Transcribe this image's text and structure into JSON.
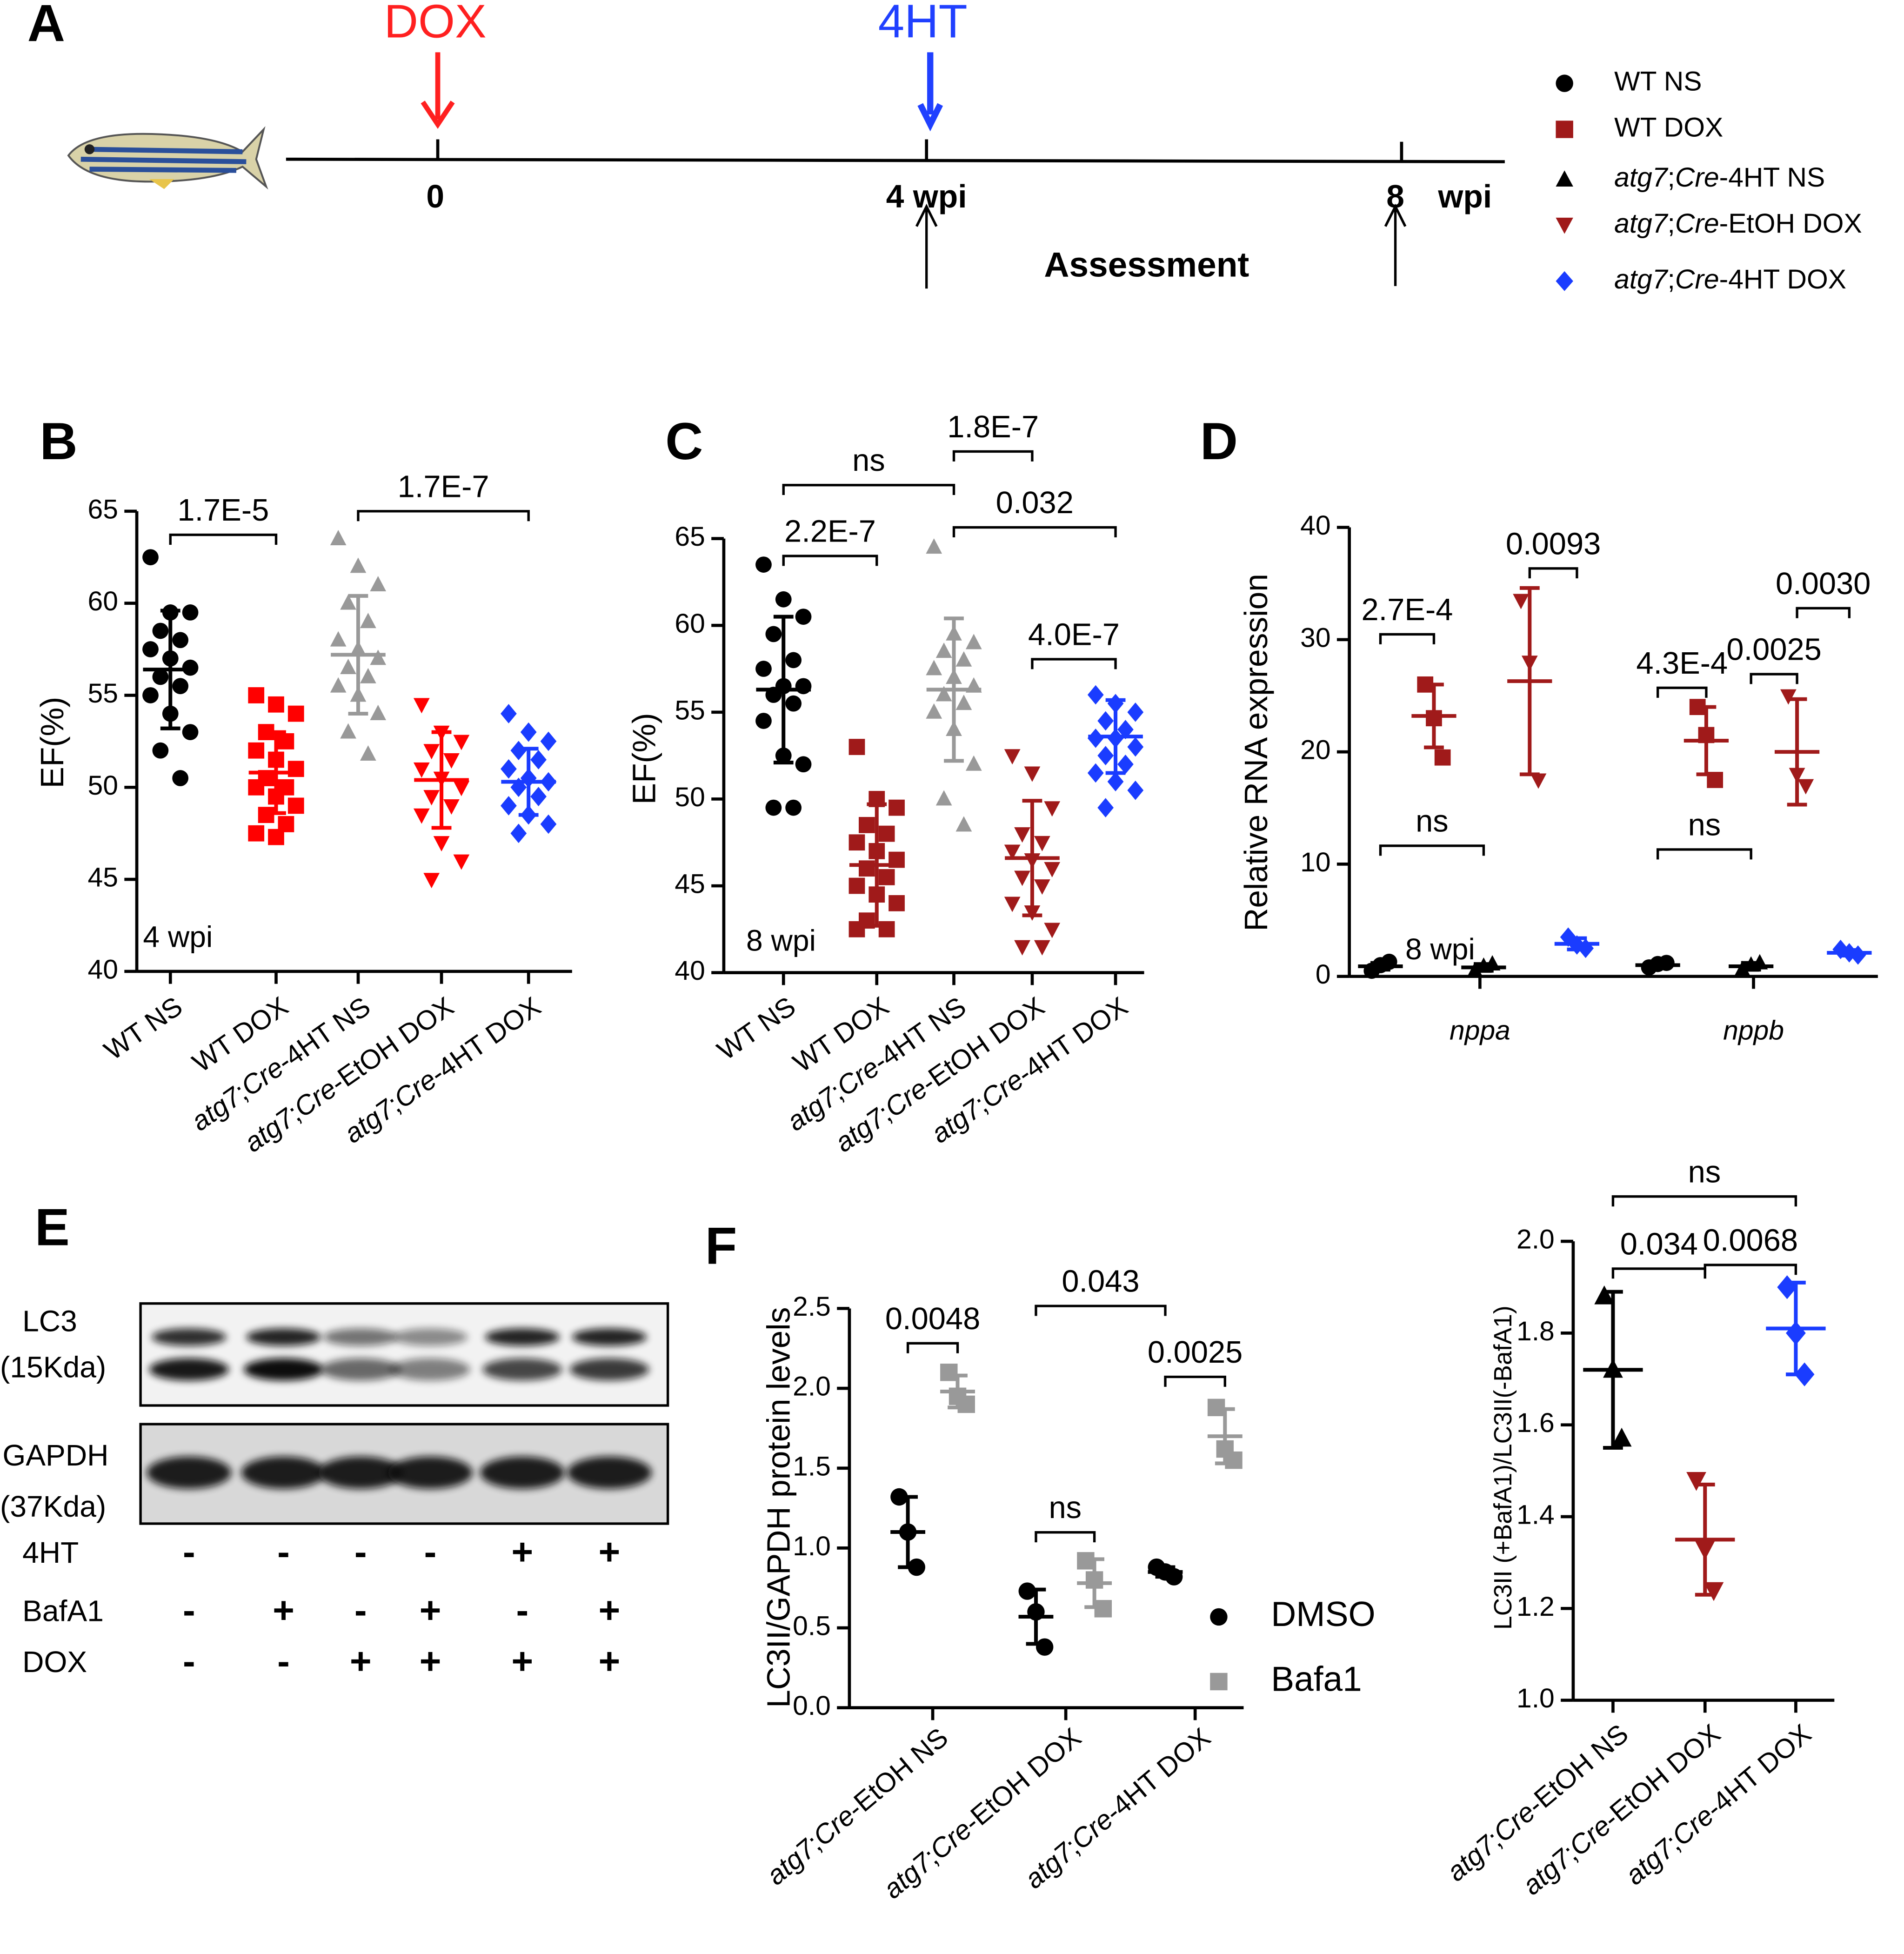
{
  "panels": [
    "A",
    "B",
    "C",
    "D",
    "E",
    "F"
  ],
  "timeline": {
    "start": "DOX",
    "intervention": "4HT",
    "ticks": [
      "0",
      "4 wpi",
      "8"
    ],
    "unit": "wpi",
    "assessment": "Assessment",
    "legend": [
      "WT NS",
      "WT DOX",
      "atg7;Cre-4HT NS",
      "atg7;Cre-EtOH DOX",
      "atg7;Cre-4HT DOX"
    ]
  },
  "blot": {
    "bands": [
      {
        "name": "LC3",
        "size": "(15Kda)"
      },
      {
        "name": "GAPDH",
        "size": "(37Kda)"
      }
    ],
    "conditions": [
      {
        "name": "4HT",
        "signs": [
          "-",
          "-",
          "-",
          "-",
          "+",
          "+"
        ]
      },
      {
        "name": "BafA1",
        "signs": [
          "-",
          "+",
          "-",
          "+",
          "-",
          "+"
        ]
      },
      {
        "name": "DOX",
        "signs": [
          "-",
          "-",
          "+",
          "+",
          "+",
          "+"
        ]
      }
    ]
  },
  "chart_data": [
    {
      "type": "dot",
      "ylabel": "EF(%)",
      "annotation": "4 wpi",
      "ylim": [
        40,
        65
      ],
      "yticks": [
        40,
        45,
        50,
        55,
        60,
        65
      ],
      "categories": [
        "WT NS",
        "WT DOX",
        "atg7;Cre-4HT NS",
        "atg7;Cre-EtOH DOX",
        "atg7;Cre-4HT DOX"
      ],
      "colors": [
        "#000000",
        "#ff0000",
        "#999999",
        "#ff0000",
        "#1a3cff"
      ],
      "markers": [
        "circle",
        "square",
        "triangle",
        "triangle-down",
        "diamond"
      ],
      "values": [
        [
          62.5,
          59.5,
          59.5,
          58.5,
          58,
          57.5,
          57,
          56.5,
          56,
          55.5,
          55,
          54,
          53,
          52,
          50.5
        ],
        [
          55,
          54.5,
          54,
          53,
          52.5,
          52,
          51.5,
          51,
          50.5,
          50,
          50,
          49.5,
          49,
          48.5,
          48,
          47.5,
          47.3
        ],
        [
          63.5,
          62,
          61,
          60,
          59,
          58,
          57.5,
          57,
          56.5,
          56,
          55.5,
          55,
          54,
          53,
          51.8
        ],
        [
          54.5,
          53,
          52.5,
          52,
          51.5,
          51,
          50.5,
          50,
          49.5,
          49,
          48.5,
          47,
          46,
          45
        ],
        [
          54,
          53,
          52.5,
          52,
          51.5,
          51,
          50.5,
          50.3,
          50,
          49.5,
          49,
          48.5,
          48,
          47.5
        ]
      ],
      "means": [
        56.4,
        50.8,
        57.2,
        50.4,
        50.3
      ],
      "sds": [
        3.2,
        2.2,
        3.2,
        2.6,
        1.8
      ],
      "comparisons": [
        {
          "between": [
            0,
            1
          ],
          "label": "1.7E-5"
        },
        {
          "between": [
            2,
            4
          ],
          "label": "1.7E-7"
        }
      ]
    },
    {
      "type": "dot",
      "ylabel": "EF(%)",
      "annotation": "8 wpi",
      "ylim": [
        40,
        65
      ],
      "yticks": [
        40,
        45,
        50,
        55,
        60,
        65
      ],
      "categories": [
        "WT NS",
        "WT DOX",
        "atg7;Cre-4HT NS",
        "atg7;Cre-EtOH DOX",
        "atg7;Cre-4HT DOX"
      ],
      "colors": [
        "#000000",
        "#a01a1a",
        "#999999",
        "#a01a1a",
        "#1a3cff"
      ],
      "markers": [
        "circle",
        "square",
        "triangle",
        "triangle-down",
        "diamond"
      ],
      "values": [
        [
          63.5,
          61.5,
          60.5,
          59.5,
          58,
          57.5,
          56.5,
          56.5,
          56,
          55.5,
          54.5,
          52.5,
          52,
          49.5,
          49.5
        ],
        [
          53,
          50,
          49.5,
          48.5,
          48,
          47.5,
          47,
          46.5,
          46,
          45.5,
          45,
          44.5,
          44,
          43,
          42.5,
          42.5
        ],
        [
          64.5,
          59.5,
          59,
          58.5,
          58,
          57.5,
          57,
          56.5,
          56,
          55.5,
          55,
          54,
          52,
          50,
          48.5
        ],
        [
          52.5,
          51.5,
          49.5,
          48,
          47.5,
          47,
          46.5,
          46,
          45.5,
          45,
          44,
          43.5,
          42.5,
          41.5,
          41.5
        ],
        [
          56,
          55.5,
          55,
          54.5,
          54,
          53.5,
          53.5,
          53,
          52.5,
          52,
          51.5,
          51,
          50.5,
          49.5
        ]
      ],
      "means": [
        56.3,
        46.2,
        56.3,
        46.6,
        53.6
      ],
      "sds": [
        4.2,
        3.5,
        4.1,
        3.3,
        2.1
      ],
      "comparisons": [
        {
          "between": [
            0,
            2
          ],
          "label": "ns"
        },
        {
          "between": [
            0,
            1
          ],
          "label": "2.2E-7"
        },
        {
          "between": [
            2,
            3
          ],
          "label": "1.8E-7"
        },
        {
          "between": [
            2,
            4
          ],
          "label": "0.032"
        },
        {
          "between": [
            3,
            4
          ],
          "label": "4.0E-7"
        }
      ]
    },
    {
      "type": "dot",
      "ylabel": "Relative  RNA expression",
      "annotation": "8 wpi",
      "ylim": [
        0,
        40
      ],
      "yticks": [
        0,
        10,
        20,
        30,
        40
      ],
      "categories": [
        "nppa",
        "nppb"
      ],
      "series": [
        {
          "color": "#000000",
          "marker": "circle",
          "values": [
            [
              0.5,
              1,
              1.3
            ],
            [
              0.8,
              1.1,
              1.2
            ]
          ],
          "means": [
            0.9,
            1
          ],
          "sds": [
            0.3,
            0.2
          ]
        },
        {
          "color": "#a01a1a",
          "marker": "square",
          "values": [
            [
              26,
              23,
              19.5
            ],
            [
              24,
              21.5,
              17.5
            ]
          ],
          "means": [
            23.2,
            21
          ],
          "sds": [
            2.8,
            3
          ]
        },
        {
          "color": "#000000",
          "marker": "triangle",
          "values": [
            [
              0.5,
              0.9,
              1.1
            ],
            [
              0.6,
              1,
              1.2
            ]
          ],
          "means": [
            0.8,
            0.9
          ],
          "sds": [
            0.3,
            0.3
          ]
        },
        {
          "color": "#a01a1a",
          "marker": "triangle-down",
          "values": [
            [
              33.5,
              28,
              17.5
            ],
            [
              25,
              18,
              17
            ]
          ],
          "means": [
            26.3,
            20
          ],
          "sds": [
            8.3,
            4.7
          ]
        },
        {
          "color": "#1a3cff",
          "marker": "diamond",
          "values": [
            [
              3.5,
              2.8,
              2.5
            ],
            [
              2.4,
              2.1,
              1.9
            ]
          ],
          "means": [
            2.9,
            2.1
          ],
          "sds": [
            0.5,
            0.25
          ]
        }
      ],
      "comparisons": [
        {
          "between": [
            [
              0,
              0
            ],
            [
              0,
              1
            ]
          ],
          "label": "2.7E-4"
        },
        {
          "between": [
            [
              0,
              3
            ],
            [
              0,
              4
            ]
          ],
          "label": "0.0093"
        },
        {
          "between": [
            [
              0,
              0
            ],
            [
              0,
              2
            ]
          ],
          "label": "ns"
        },
        {
          "between": [
            [
              1,
              0
            ],
            [
              1,
              1
            ]
          ],
          "label": "4.3E-4"
        },
        {
          "between": [
            [
              1,
              2
            ],
            [
              1,
              3
            ]
          ],
          "label": "0.0025"
        },
        {
          "between": [
            [
              1,
              3
            ],
            [
              1,
              4
            ]
          ],
          "label": "0.0030"
        },
        {
          "between": [
            [
              1,
              0
            ],
            [
              1,
              2
            ]
          ],
          "label": "ns"
        }
      ]
    },
    {
      "type": "dot",
      "ylabel": "LC3II/GAPDH protein levels",
      "ylim": [
        0,
        2.5
      ],
      "yticks": [
        {
          "value": 0,
          "label": "0.0"
        },
        0.5,
        {
          "value": 1,
          "label": "1.0"
        },
        1.5,
        {
          "value": 2,
          "label": "2.0"
        },
        2.5
      ],
      "categories": [
        "atg7;Cre-EtOH NS",
        "atg7;Cre-EtOH DOX",
        "atg7;Cre-4HT DOX"
      ],
      "series": [
        {
          "name": "DMSO",
          "color": "#000000",
          "marker": "circle",
          "values": [
            [
              1.32,
              1.1,
              0.88
            ],
            [
              0.73,
              0.6,
              0.38
            ],
            [
              0.88,
              0.85,
              0.82
            ]
          ],
          "means": [
            1.1,
            0.57,
            0.85
          ],
          "sds": [
            0.22,
            0.17,
            0.03
          ]
        },
        {
          "name": "Bafa1",
          "color": "#999999",
          "marker": "square",
          "values": [
            [
              2.1,
              1.95,
              1.9
            ],
            [
              0.92,
              0.8,
              0.62
            ],
            [
              1.88,
              1.62,
              1.55
            ]
          ],
          "means": [
            1.98,
            0.78,
            1.7
          ],
          "sds": [
            0.1,
            0.15,
            0.17
          ]
        }
      ],
      "comparisons": [
        {
          "between": [
            [
              0,
              0
            ],
            [
              0,
              1
            ]
          ],
          "label": "0.0048"
        },
        {
          "between": [
            [
              1,
              0
            ],
            [
              2,
              0
            ]
          ],
          "label": "0.043"
        },
        {
          "between": [
            [
              2,
              0
            ],
            [
              2,
              1
            ]
          ],
          "label": "0.0025"
        },
        {
          "between": [
            [
              1,
              0
            ],
            [
              1,
              1
            ]
          ],
          "label": "ns"
        }
      ]
    },
    {
      "type": "dot",
      "ylabel": "LC3II (+BafA1)/LC3II(-BafA1)",
      "ylim": [
        1,
        2
      ],
      "yticks": [
        {
          "value": 1,
          "label": "1.0"
        },
        1.2,
        1.4,
        1.6,
        1.8,
        {
          "value": 2,
          "label": "2.0"
        }
      ],
      "categories": [
        "atg7;Cre-EtOH NS",
        "atg7;Cre-EtOH DOX",
        "atg7;Cre-4HT DOX"
      ],
      "colors": [
        "#000000",
        "#a01a1a",
        "#1a3cff"
      ],
      "markers": [
        "triangle",
        "triangle-down",
        "diamond"
      ],
      "values": [
        [
          1.88,
          1.72,
          1.57
        ],
        [
          1.48,
          1.33,
          1.24
        ],
        [
          1.9,
          1.8,
          1.71
        ]
      ],
      "means": [
        1.72,
        1.35,
        1.81
      ],
      "sds": [
        0.17,
        0.12,
        0.1
      ],
      "comparisons": [
        {
          "between": [
            0,
            2
          ],
          "label": "ns"
        },
        {
          "between": [
            0,
            1
          ],
          "label": "0.034"
        },
        {
          "between": [
            1,
            2
          ],
          "label": "0.0068"
        }
      ]
    }
  ]
}
